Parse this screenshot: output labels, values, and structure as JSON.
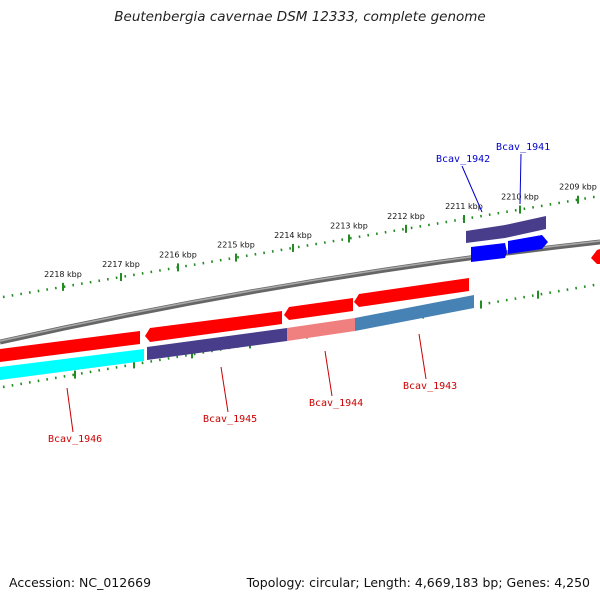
{
  "title": "Beutenbergia cavernae DSM 12333, complete genome",
  "footer": {
    "accession": "Accession: NC_012669",
    "summary": "Topology: circular; Length: 4,669,183 bp; Genes: 4,250"
  },
  "colors": {
    "backbone": "#888888",
    "ticks": "#228B22",
    "forward_gene": "#ff0000",
    "forward_gene_pale": "#f08080",
    "reverse_gene": "#0000ff",
    "cds_purple": "#483d8b",
    "cds_steel": "#4682b4",
    "cds_cyan": "#00ffff",
    "label_forward": "#cc0000",
    "label_reverse": "#0000cc"
  },
  "ticks": [
    {
      "label": "2218 kbp"
    },
    {
      "label": "2217 kbp"
    },
    {
      "label": "2216 kbp"
    },
    {
      "label": "2215 kbp"
    },
    {
      "label": "2214 kbp"
    },
    {
      "label": "2213 kbp"
    },
    {
      "label": "2212 kbp"
    },
    {
      "label": "2211 kbp"
    },
    {
      "label": "2210 kbp"
    },
    {
      "label": "2209 kbp"
    }
  ],
  "genes": [
    {
      "label": "Bcav_1946",
      "strand": "forward"
    },
    {
      "label": "Bcav_1945",
      "strand": "forward"
    },
    {
      "label": "Bcav_1944",
      "strand": "forward"
    },
    {
      "label": "Bcav_1943",
      "strand": "forward"
    },
    {
      "label": "Bcav_1942",
      "strand": "reverse"
    },
    {
      "label": "Bcav_1941",
      "strand": "reverse"
    }
  ]
}
